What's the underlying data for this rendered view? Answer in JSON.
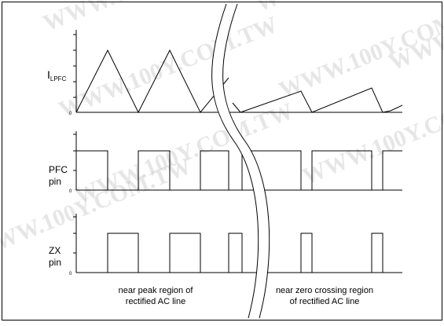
{
  "watermark": "WWW.100Y.COM.TW",
  "traces": [
    {
      "id": "ilpfc",
      "label_main": "I",
      "label_sub": "LPFC",
      "zero_label": "0"
    },
    {
      "id": "pfc",
      "label_line1": "PFC",
      "label_line2": "pin",
      "zero_label": "0"
    },
    {
      "id": "zx",
      "label_line1": "ZX",
      "label_line2": "pin",
      "zero_label": "0"
    }
  ],
  "captions": {
    "left_line1": "near peak region of",
    "left_line2": "rectified AC line",
    "right_line1": "near zero crossing region",
    "right_line2": "of rectified AC line"
  }
}
